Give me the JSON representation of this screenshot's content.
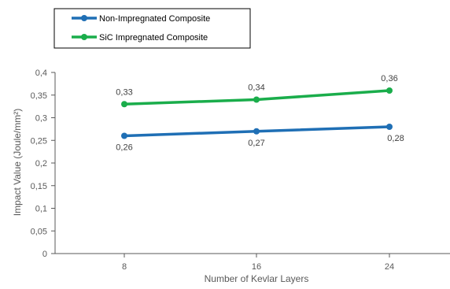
{
  "chart_data": {
    "type": "line",
    "categories": [
      "8",
      "16",
      "24"
    ],
    "series": [
      {
        "name": "Non-Impregnated Composite",
        "values": [
          0.26,
          0.27,
          0.28
        ],
        "labels": [
          "0,26",
          "0,27",
          "0,28"
        ],
        "color": "#1f6fb5"
      },
      {
        "name": "SiC Impregnated Composite",
        "values": [
          0.33,
          0.34,
          0.36
        ],
        "labels": [
          "0,33",
          "0,34",
          "0,36"
        ],
        "color": "#1aad4b"
      }
    ],
    "xlabel": "Number of Kevlar Layers",
    "ylabel": "Impact Value (Joule/mm²)",
    "ylim": [
      0,
      0.4
    ],
    "yticks": [
      "0",
      "0,05",
      "0,1",
      "0,15",
      "0,2",
      "0,25",
      "0,3",
      "0,35",
      "0,4"
    ],
    "legend_position": "top-left",
    "grid": false
  }
}
